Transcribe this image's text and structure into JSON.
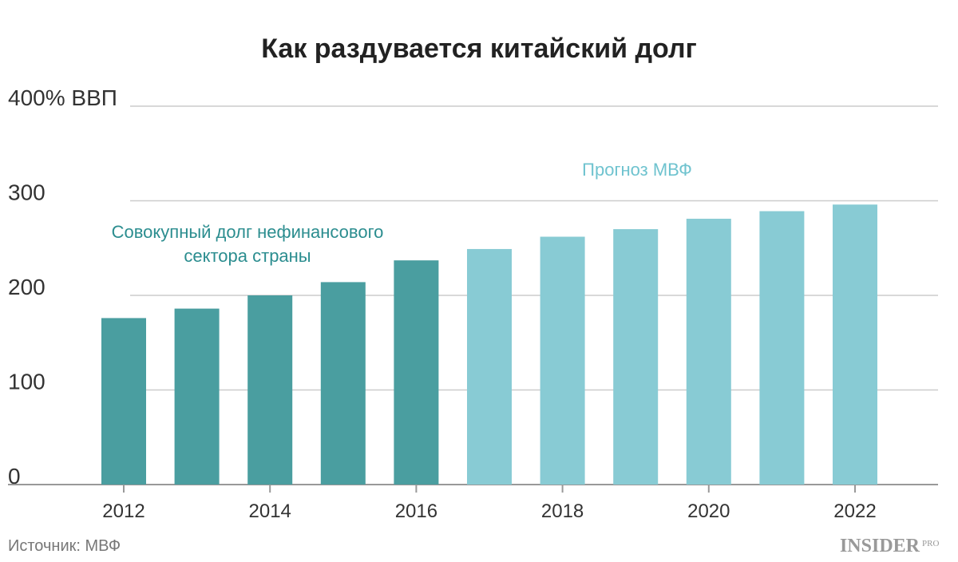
{
  "chart_data": {
    "type": "bar",
    "title": "Как раздувается китайский долг",
    "categories": [
      "2012",
      null,
      "2014",
      null,
      "2016",
      null,
      "2018",
      null,
      "2020",
      null,
      "2022"
    ],
    "series": [
      {
        "name": "Совокупный долг нефинансового сектора страны",
        "color": "#4a9ea0",
        "values": [
          176,
          186,
          200,
          214,
          237,
          null,
          null,
          null,
          null,
          null,
          null
        ]
      },
      {
        "name": "Прогноз МВФ",
        "color": "#88cbd4",
        "values": [
          null,
          null,
          null,
          null,
          null,
          249,
          262,
          270,
          281,
          289,
          296
        ]
      }
    ],
    "ylim": [
      0,
      400
    ],
    "yticks": [
      0,
      100,
      200,
      300,
      {
        "value": 400,
        "label": "400% ВВП"
      }
    ],
    "grid": true,
    "source": "Источник: МВФ",
    "logo": {
      "main": "INSIDER",
      "sub": "PRO"
    }
  }
}
